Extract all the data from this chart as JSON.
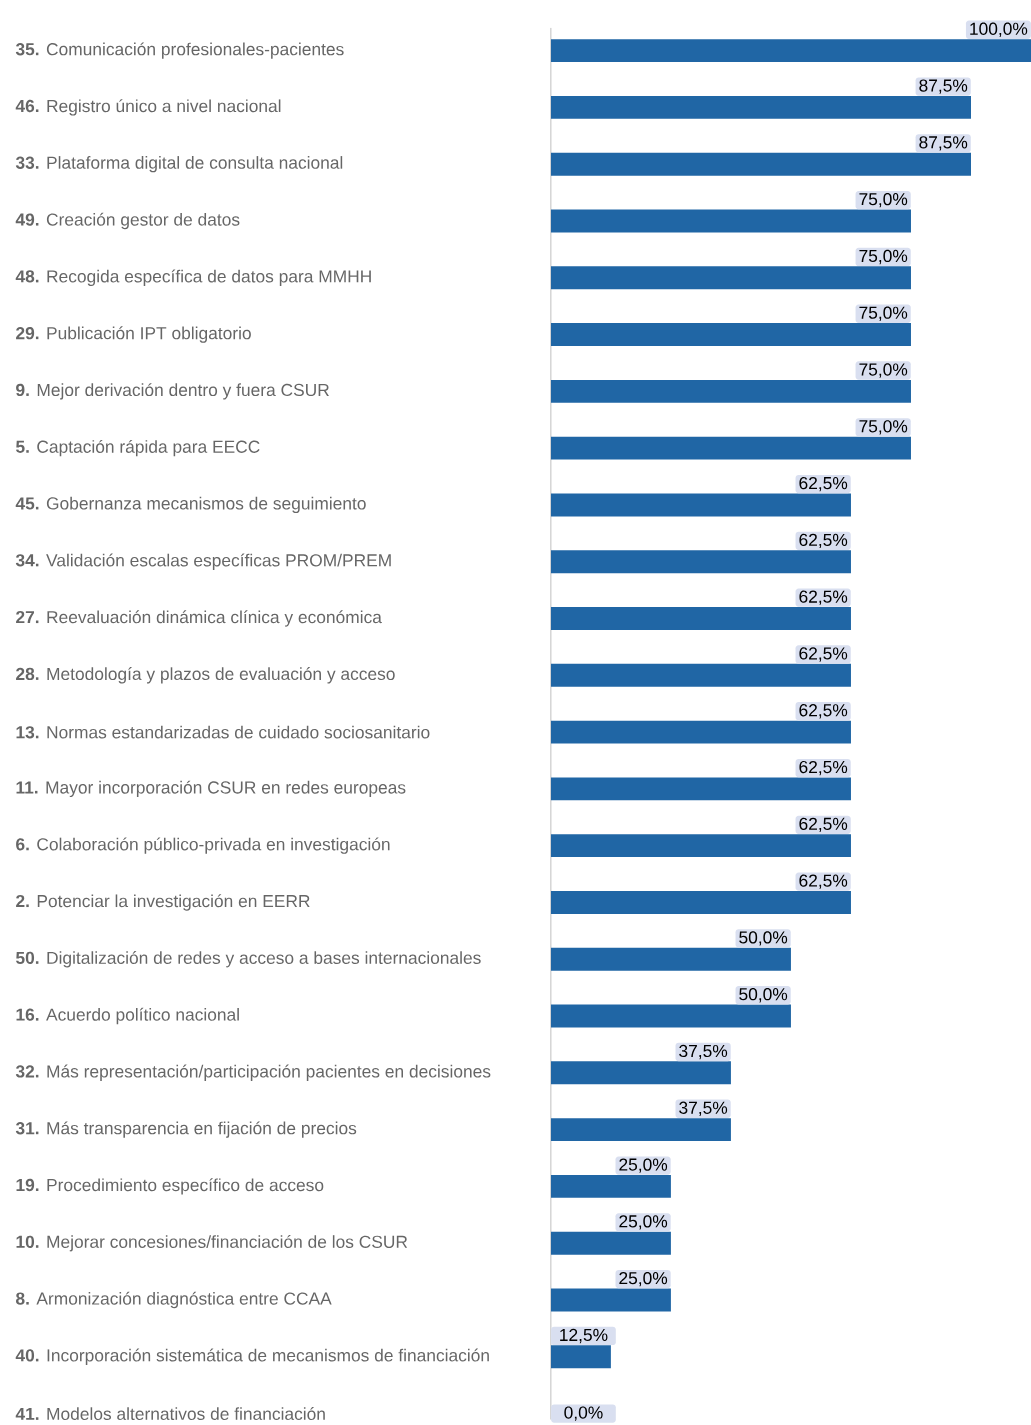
{
  "chart_data": {
    "type": "bar",
    "orientation": "horizontal",
    "color": "#2066a5",
    "xlim": [
      0,
      100
    ],
    "tick_labels": "y",
    "categories": [
      "**35.** Comunicación profesionales-pacientes",
      "**46.** Registro único a nivel nacional",
      "**33.** Plataforma digital de consulta nacional",
      "**49.** Creación gestor de datos",
      "**48.** Recogida específica de datos para MMHH",
      "**29.** Publicación IPT obligatorio",
      "**9.** Mejor derivación dentro y fuera CSUR",
      "**5.** Captación rápida para EECC",
      "**45.** Gobernanza mecanismos de seguimiento",
      "**34.** Validación escalas específicas PROM/PREM",
      "**27.** Reevaluación dinámica clínica y económica",
      "**28.** Metodología y plazos de evaluación y acceso",
      "**13.** Normas estandarizadas de cuidado sociosanitario",
      "**11.** Mayor incorporación CSUR en redes europeas",
      "**6.** Colaboración público-privada en investigación",
      "**2.** Potenciar la investigación en EERR",
      "**50.** Digitalización de redes y acceso a bases internacionales",
      "**16.** Acuerdo político nacional",
      "**32.** Más representación/participación pacientes en decisiones",
      "**31.** Más transparencia en fijación de precios",
      "**19.** Procedimiento específico de acceso",
      "**10.** Mejorar concesiones/financiación de los CSUR",
      "**8.** Armonización diagnóstica entre CCAA",
      "**40.** Incorporación sistemática de mecanismos de financiación",
      "**41.** Modelos alternativos de financiación"
    ],
    "values": [
      100,
      87.5,
      87.5,
      75,
      75,
      75,
      75,
      75,
      62.5,
      62.5,
      62.5,
      62.5,
      62.5,
      62.5,
      62.5,
      62.5,
      50,
      50,
      37.5,
      37.5,
      25,
      25,
      25,
      12.5,
      0
    ],
    "value_labels": [
      "100,0%",
      "87,5%",
      "87,5%",
      "75,0%",
      "75,0%",
      "75,0%",
      "75,0%",
      "75,0%",
      "62,5%",
      "62,5%",
      "62,5%",
      "62,5%",
      "62,5%",
      "62,5%",
      "62,5%",
      "62,5%",
      "50,0%",
      "50,0%",
      "37,5%",
      "37,5%",
      "25,0%",
      "25,0%",
      "25,0%",
      "12,5%",
      "0,0%"
    ]
  }
}
